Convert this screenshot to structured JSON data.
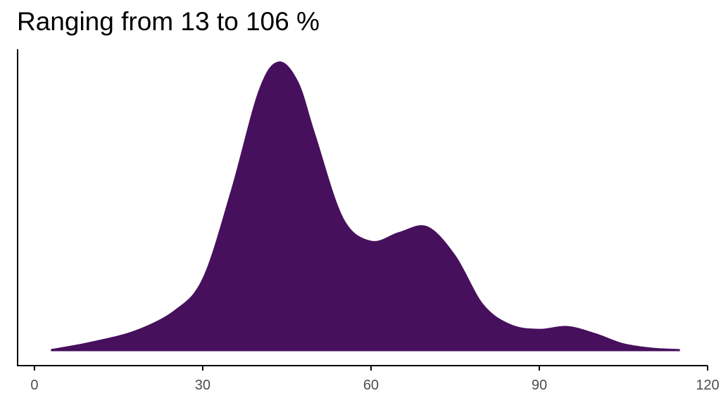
{
  "chart_data": {
    "type": "area",
    "title": "Ranging from 13 to 106 %",
    "xlabel": "",
    "ylabel": "",
    "xlim": [
      -3,
      120
    ],
    "ylim": [
      0,
      1
    ],
    "x_ticks": [
      0,
      30,
      60,
      90,
      120
    ],
    "y_ticks": [],
    "grid": false,
    "fill_color": "#47105d",
    "axis_color": "#000000",
    "tick_label_color": "#4d4d4d",
    "series": [
      {
        "x": [
          3,
          10,
          18,
          25,
          30,
          35,
          40,
          43.5,
          47,
          50,
          55,
          60,
          65,
          70,
          75,
          80,
          85,
          90,
          95,
          100,
          105,
          110,
          115
        ],
        "y": [
          0.005,
          0.03,
          0.07,
          0.14,
          0.25,
          0.55,
          0.9,
          1.0,
          0.93,
          0.75,
          0.46,
          0.38,
          0.41,
          0.43,
          0.33,
          0.16,
          0.09,
          0.075,
          0.085,
          0.06,
          0.025,
          0.01,
          0.005
        ]
      }
    ]
  }
}
